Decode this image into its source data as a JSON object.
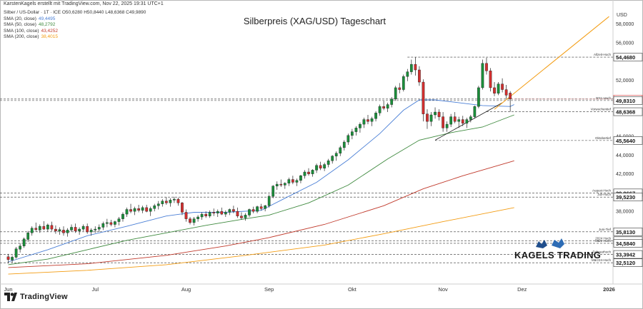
{
  "attribution": "KarstenKagels erstellt mit TradingView.com, Nov 22, 2025 19:31 UTC+1",
  "legend": {
    "symbol_line": "Silber / US-Dollar · 1T · ICE  O50,6280 H50,8440 L48,6368 C49,9890",
    "sma": [
      {
        "label": "SMA (20, close)",
        "value": "49,4495",
        "color": "#4a7fd6"
      },
      {
        "label": "SMA (50, close)",
        "value": "48,2792",
        "color": "#3f8a3f"
      },
      {
        "label": "SMA (100, close)",
        "value": "43,4252",
        "color": "#c0392b"
      },
      {
        "label": "SMA (200, close)",
        "value": "38,4015",
        "color": "#f39c12"
      }
    ]
  },
  "brand": {
    "tradingview": "TradingView",
    "kagels": "KAGELS TRADING"
  },
  "chart_data": {
    "type": "candlestick",
    "title": "Silberpreis (XAG/USD) Tageschart",
    "currency_label": "USD",
    "ylim": [
      31.0,
      59.5
    ],
    "y_ticks": [
      "38,0000",
      "42,0000",
      "44,0000",
      "46,0000",
      "52,0000",
      "56,0000",
      "58,0000"
    ],
    "x_labels": [
      {
        "label": "Jun",
        "i": 0
      },
      {
        "label": "Jul",
        "i": 22
      },
      {
        "label": "Aug",
        "i": 45
      },
      {
        "label": "Sep",
        "i": 66
      },
      {
        "label": "Okt",
        "i": 87
      },
      {
        "label": "Nov",
        "i": 110
      },
      {
        "label": "Dez",
        "i": 130
      },
      {
        "label": "2026",
        "i": 152
      }
    ],
    "index_range": [
      -1,
      153
    ],
    "candles": [
      [
        33.15,
        33.45,
        32.45,
        32.85
      ],
      [
        32.8,
        33.3,
        32.5,
        33.1
      ],
      [
        33.1,
        34.2,
        32.95,
        34.0
      ],
      [
        33.95,
        34.6,
        33.6,
        34.3
      ],
      [
        34.3,
        35.2,
        34.1,
        35.05
      ],
      [
        35.0,
        35.9,
        34.75,
        35.7
      ],
      [
        35.7,
        36.4,
        35.4,
        36.2
      ],
      [
        36.2,
        36.8,
        35.8,
        36.05
      ],
      [
        36.0,
        36.6,
        35.7,
        36.4
      ],
      [
        36.4,
        36.95,
        36.0,
        36.1
      ],
      [
        36.1,
        36.7,
        35.85,
        36.55
      ],
      [
        36.5,
        36.9,
        35.9,
        36.1
      ],
      [
        36.1,
        36.5,
        35.6,
        35.9
      ],
      [
        35.9,
        36.3,
        35.5,
        36.05
      ],
      [
        36.0,
        36.4,
        35.4,
        35.7
      ],
      [
        35.7,
        36.2,
        35.3,
        36.0
      ],
      [
        36.0,
        36.6,
        35.8,
        36.3
      ],
      [
        36.3,
        36.7,
        35.7,
        35.9
      ],
      [
        35.9,
        36.3,
        35.5,
        36.1
      ],
      [
        36.1,
        36.6,
        35.9,
        36.4
      ],
      [
        36.4,
        36.7,
        35.6,
        35.8
      ],
      [
        35.8,
        36.2,
        35.4,
        36.0
      ],
      [
        36.0,
        36.4,
        35.7,
        36.1
      ],
      [
        36.1,
        36.6,
        35.8,
        36.3
      ],
      [
        36.3,
        36.9,
        36.0,
        36.7
      ],
      [
        36.7,
        37.2,
        36.3,
        36.8
      ],
      [
        36.8,
        37.1,
        36.4,
        36.6
      ],
      [
        36.6,
        37.0,
        36.3,
        36.9
      ],
      [
        36.9,
        37.4,
        36.5,
        37.2
      ],
      [
        37.2,
        37.9,
        36.9,
        37.7
      ],
      [
        37.7,
        38.4,
        37.4,
        38.2
      ],
      [
        38.2,
        38.8,
        37.8,
        38.0
      ],
      [
        38.0,
        38.5,
        37.6,
        38.3
      ],
      [
        38.3,
        38.7,
        37.9,
        38.1
      ],
      [
        38.1,
        38.6,
        37.8,
        38.4
      ],
      [
        38.4,
        38.7,
        37.9,
        38.0
      ],
      [
        38.0,
        38.5,
        37.5,
        38.3
      ],
      [
        38.3,
        38.8,
        38.0,
        38.6
      ],
      [
        38.6,
        39.1,
        38.2,
        38.8
      ],
      [
        38.8,
        39.3,
        38.5,
        39.1
      ],
      [
        39.1,
        39.5,
        38.7,
        38.9
      ],
      [
        38.9,
        39.4,
        38.5,
        39.2
      ],
      [
        39.2,
        39.55,
        38.9,
        39.3
      ],
      [
        39.3,
        39.45,
        38.6,
        38.9
      ],
      [
        38.9,
        39.0,
        37.6,
        37.9
      ],
      [
        37.9,
        38.2,
        36.9,
        37.2
      ],
      [
        37.2,
        37.4,
        36.6,
        36.8
      ],
      [
        36.8,
        37.4,
        36.5,
        37.2
      ],
      [
        37.2,
        37.6,
        36.9,
        37.4
      ],
      [
        37.4,
        37.9,
        37.1,
        37.7
      ],
      [
        37.7,
        38.0,
        37.3,
        37.5
      ],
      [
        37.5,
        38.1,
        37.3,
        37.9
      ],
      [
        37.9,
        38.3,
        37.5,
        37.8
      ],
      [
        37.8,
        38.2,
        37.4,
        38.0
      ],
      [
        38.0,
        38.4,
        37.6,
        37.7
      ],
      [
        37.7,
        38.1,
        37.4,
        37.9
      ],
      [
        37.9,
        38.3,
        37.6,
        38.2
      ],
      [
        38.2,
        38.6,
        37.8,
        38.0
      ],
      [
        38.0,
        38.4,
        37.3,
        37.5
      ],
      [
        37.5,
        37.9,
        37.1,
        37.3
      ],
      [
        37.3,
        37.8,
        37.0,
        37.6
      ],
      [
        37.6,
        38.3,
        37.4,
        38.2
      ],
      [
        38.2,
        38.5,
        37.8,
        38.0
      ],
      [
        38.0,
        38.6,
        37.8,
        38.5
      ],
      [
        38.5,
        38.8,
        38.1,
        38.3
      ],
      [
        38.3,
        38.7,
        38.0,
        38.6
      ],
      [
        38.6,
        39.8,
        38.4,
        39.6
      ],
      [
        39.6,
        40.8,
        39.4,
        40.7
      ],
      [
        40.7,
        41.2,
        40.3,
        40.9
      ],
      [
        40.9,
        41.4,
        40.6,
        40.8
      ],
      [
        40.8,
        41.1,
        40.4,
        41.0
      ],
      [
        41.0,
        41.6,
        40.7,
        41.4
      ],
      [
        41.4,
        41.8,
        40.9,
        41.1
      ],
      [
        41.1,
        41.5,
        40.7,
        41.3
      ],
      [
        41.3,
        41.9,
        41.0,
        41.8
      ],
      [
        41.8,
        42.4,
        41.5,
        42.2
      ],
      [
        42.2,
        42.6,
        41.8,
        42.0
      ],
      [
        42.0,
        42.5,
        41.7,
        42.4
      ],
      [
        42.4,
        43.1,
        42.1,
        42.9
      ],
      [
        42.9,
        43.3,
        42.4,
        42.6
      ],
      [
        42.6,
        43.2,
        42.3,
        43.0
      ],
      [
        43.0,
        43.6,
        42.7,
        43.4
      ],
      [
        43.4,
        44.0,
        43.1,
        43.9
      ],
      [
        43.9,
        44.4,
        43.4,
        44.2
      ],
      [
        44.2,
        45.0,
        43.9,
        44.8
      ],
      [
        44.8,
        45.6,
        44.5,
        45.4
      ],
      [
        45.4,
        46.3,
        45.1,
        46.1
      ],
      [
        46.1,
        46.8,
        45.7,
        46.5
      ],
      [
        46.5,
        47.1,
        46.1,
        46.9
      ],
      [
        46.9,
        47.5,
        46.4,
        47.3
      ],
      [
        47.3,
        48.0,
        46.9,
        47.8
      ],
      [
        47.8,
        48.3,
        47.3,
        47.6
      ],
      [
        47.6,
        48.1,
        47.1,
        47.9
      ],
      [
        47.9,
        48.7,
        47.6,
        48.5
      ],
      [
        48.5,
        49.4,
        48.2,
        49.2
      ],
      [
        49.2,
        49.8,
        48.8,
        49.0
      ],
      [
        49.0,
        49.6,
        48.6,
        49.4
      ],
      [
        49.4,
        50.2,
        49.1,
        50.0
      ],
      [
        50.0,
        51.4,
        49.8,
        51.2
      ],
      [
        51.2,
        51.7,
        50.6,
        51.0
      ],
      [
        51.0,
        52.6,
        50.8,
        52.4
      ],
      [
        52.4,
        53.2,
        51.9,
        52.9
      ],
      [
        52.9,
        54.2,
        52.6,
        53.7
      ],
      [
        53.7,
        54.47,
        52.5,
        53.1
      ],
      [
        53.1,
        53.5,
        51.4,
        51.8
      ],
      [
        51.8,
        52.1,
        47.6,
        48.4
      ],
      [
        48.4,
        48.9,
        46.8,
        47.6
      ],
      [
        47.6,
        48.6,
        47.1,
        48.3
      ],
      [
        48.3,
        49.1,
        47.9,
        48.6
      ],
      [
        48.6,
        48.9,
        47.7,
        48.1
      ],
      [
        48.1,
        48.6,
        46.5,
        46.9
      ],
      [
        46.9,
        47.6,
        46.5,
        47.3
      ],
      [
        47.3,
        48.4,
        47.0,
        48.1
      ],
      [
        48.1,
        48.6,
        47.4,
        47.6
      ],
      [
        47.6,
        48.1,
        46.9,
        47.8
      ],
      [
        47.8,
        48.2,
        47.1,
        47.4
      ],
      [
        47.4,
        48.0,
        46.9,
        47.8
      ],
      [
        47.8,
        48.3,
        47.5,
        48.1
      ],
      [
        48.1,
        49.3,
        47.9,
        49.2
      ],
      [
        49.2,
        51.4,
        49.0,
        51.2
      ],
      [
        51.2,
        54.2,
        51.0,
        53.8
      ],
      [
        53.8,
        54.4,
        52.6,
        53.0
      ],
      [
        53.0,
        53.3,
        50.8,
        51.2
      ],
      [
        51.2,
        51.8,
        50.3,
        50.6
      ],
      [
        50.6,
        51.8,
        50.4,
        51.6
      ],
      [
        51.6,
        52.2,
        50.7,
        51.0
      ],
      [
        51.0,
        51.5,
        50.0,
        50.4
      ],
      [
        50.63,
        50.84,
        48.64,
        49.99
      ]
    ],
    "sma": [
      {
        "name": "SMA (20, close)",
        "color": "#4a7fd6",
        "points": [
          [
            0,
            32.6
          ],
          [
            10,
            33.9
          ],
          [
            20,
            35.4
          ],
          [
            30,
            36.4
          ],
          [
            40,
            37.5
          ],
          [
            47,
            37.9
          ],
          [
            55,
            37.9
          ],
          [
            64,
            38.1
          ],
          [
            70,
            39.4
          ],
          [
            78,
            41.1
          ],
          [
            86,
            43.5
          ],
          [
            94,
            46.3
          ],
          [
            100,
            48.8
          ],
          [
            104,
            49.9
          ],
          [
            108,
            49.9
          ],
          [
            114,
            49.6
          ],
          [
            120,
            49.3
          ],
          [
            127,
            49.2
          ],
          [
            128,
            49.4
          ]
        ]
      },
      {
        "name": "SMA (50, close)",
        "color": "#3f8a3f",
        "points": [
          [
            0,
            32.3
          ],
          [
            10,
            32.9
          ],
          [
            20,
            33.9
          ],
          [
            30,
            34.9
          ],
          [
            40,
            35.7
          ],
          [
            50,
            36.5
          ],
          [
            60,
            37.2
          ],
          [
            66,
            37.6
          ],
          [
            76,
            38.9
          ],
          [
            86,
            40.8
          ],
          [
            96,
            43.6
          ],
          [
            104,
            45.6
          ],
          [
            112,
            46.4
          ],
          [
            120,
            47.0
          ],
          [
            128,
            48.3
          ]
        ]
      },
      {
        "name": "SMA (100, close)",
        "color": "#c0392b",
        "points": [
          [
            0,
            32.0
          ],
          [
            20,
            32.4
          ],
          [
            40,
            33.3
          ],
          [
            55,
            34.3
          ],
          [
            66,
            35.2
          ],
          [
            80,
            36.6
          ],
          [
            95,
            38.6
          ],
          [
            105,
            40.4
          ],
          [
            115,
            41.8
          ],
          [
            128,
            43.4
          ]
        ]
      },
      {
        "name": "SMA (200, close)",
        "color": "#f39c12",
        "points": [
          [
            0,
            31.3
          ],
          [
            20,
            31.7
          ],
          [
            40,
            32.3
          ],
          [
            60,
            33.3
          ],
          [
            80,
            34.4
          ],
          [
            95,
            35.6
          ],
          [
            110,
            36.9
          ],
          [
            128,
            38.4
          ]
        ]
      }
    ],
    "levels": [
      {
        "value": 54.468,
        "label": "54,4680",
        "note": "Allzeit-Hoch",
        "from_i": 101,
        "bg": "#ffffff",
        "fg": "#111111"
      },
      {
        "value": 49.989,
        "label": "49,9890",
        "note": "",
        "from_i": -1,
        "bg": "#ffffff",
        "fg": "#d32f2f"
      },
      {
        "value": 49.831,
        "label": "49,8310",
        "note": "2011 Hoch",
        "from_i": -1,
        "bg": "#ffffff",
        "fg": "#111111"
      },
      {
        "value": 48.6368,
        "label": "48,6368",
        "note": "Vorwochentief",
        "from_i": 121,
        "bg": "#ffffff",
        "fg": "#111111"
      },
      {
        "value": 45.564,
        "label": "45,5640",
        "note": "Oktobertief",
        "from_i": 108,
        "bg": "#ffffff",
        "fg": "#111111"
      },
      {
        "value": 39.9667,
        "label": "39,9667",
        "note": "August-Hoch",
        "from_i": -1,
        "bg": "#ffffff",
        "fg": "#111111"
      },
      {
        "value": 39.523,
        "label": "39,5230",
        "note": "Juli-Hoch",
        "from_i": -1,
        "bg": "#ffffff",
        "fg": "#111111"
      },
      {
        "value": 35.813,
        "label": "35,8130",
        "note": "Juni-Tief",
        "from_i": -1,
        "bg": "#ffffff",
        "fg": "#111111"
      },
      {
        "value": 34.863,
        "label": "34,8630",
        "note": "2024 Hoch",
        "from_i": -1,
        "bg": "#ffffff",
        "fg": "#111111"
      },
      {
        "value": 34.584,
        "label": "34,5840",
        "note": "März-Hoch",
        "from_i": -1,
        "bg": "#ffffff",
        "fg": "#111111"
      },
      {
        "value": 33.3942,
        "label": "33,3942",
        "note": "Februarhoch",
        "from_i": -1,
        "bg": "#ffffff",
        "fg": "#111111"
      },
      {
        "value": 32.512,
        "label": "32,5120",
        "note": "März24-Hoch",
        "from_i": -1,
        "bg": "#ffffff",
        "fg": "#111111"
      }
    ],
    "last_price_marker": {
      "value": 49.989,
      "color": "#d32f2f"
    },
    "trendlines": [
      {
        "color": "#000000",
        "width": 0.7,
        "points": [
          [
            108,
            45.6
          ],
          [
            125,
            49.6
          ]
        ]
      },
      {
        "color": "#f39c12",
        "width": 1.0,
        "points": [
          [
            123,
            48.9
          ],
          [
            152,
            58.8
          ]
        ]
      }
    ]
  }
}
